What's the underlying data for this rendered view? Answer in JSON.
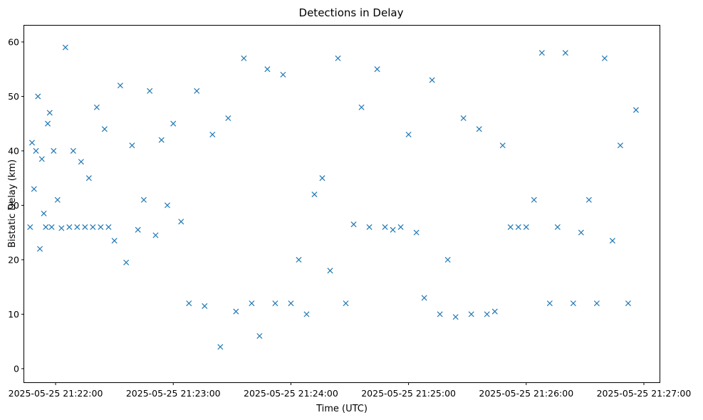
{
  "chart_data": {
    "type": "scatter",
    "title": "Detections in Delay",
    "xlabel": "Time (UTC)",
    "ylabel": "Bistatic Delay (km)",
    "marker": "x",
    "color": "#1f77b4",
    "grid": false,
    "x_tick_labels": [
      "2025-05-25 21:22:00",
      "2025-05-25 21:23:00",
      "2025-05-25 21:24:00",
      "2025-05-25 21:25:00",
      "2025-05-25 21:26:00",
      "2025-05-25 21:27:00"
    ],
    "y_ticks": [
      0,
      10,
      20,
      30,
      40,
      50,
      60
    ],
    "xlim": [
      "2025-05-25 21:21:44",
      "2025-05-25 21:27:08"
    ],
    "ylim": [
      -2.5,
      63
    ],
    "points_time": [
      "21:21:47",
      "21:21:47",
      "21:21:48",
      "21:21:48",
      "21:21:49",
      "21:21:49",
      "21:21:50",
      "21:21:50",
      "21:21:51",
      "21:21:51",
      "21:21:52",
      "21:21:52",
      "21:21:53",
      "21:21:54",
      "21:21:54",
      "21:21:55",
      "21:21:55",
      "21:21:56",
      "21:21:56",
      "21:21:57",
      "21:21:58",
      "21:21:58",
      "21:21:59",
      "21:21:59",
      "21:22:00",
      "21:22:00",
      "21:22:01",
      "21:22:02",
      "21:22:03",
      "21:22:04",
      "21:22:05",
      "21:22:06",
      "21:22:07",
      "21:22:08",
      "21:22:09",
      "21:22:10",
      "21:22:11",
      "21:22:12",
      "21:22:13",
      "21:22:14",
      "21:22:15",
      "21:22:16",
      "21:22:17",
      "21:22:18",
      "21:22:19",
      "21:22:20",
      "21:22:21",
      "21:22:22",
      "21:22:23",
      "21:22:24",
      "21:22:25",
      "21:22:26",
      "21:22:27",
      "21:22:28",
      "21:22:29",
      "21:22:30",
      "21:22:31",
      "21:22:32",
      "21:22:33",
      "21:22:34",
      "21:22:35",
      "21:22:36",
      "21:22:37",
      "21:22:38",
      "21:22:39",
      "21:22:40",
      "21:22:41",
      "21:22:42",
      "21:22:43",
      "21:22:44",
      "21:22:45",
      "21:22:46",
      "21:22:47",
      "21:22:48",
      "21:22:49",
      "21:22:50",
      "21:22:51",
      "21:22:52",
      "21:22:53",
      "21:22:54",
      "21:22:55",
      "21:22:56",
      "21:22:57",
      "21:22:58",
      "21:22:59",
      "21:23:00",
      "21:23:01",
      "21:23:02",
      "21:23:03",
      "21:23:04",
      "21:23:05",
      "21:23:06",
      "21:23:07",
      "21:23:08",
      "21:23:09",
      "21:23:10",
      "21:23:11",
      "21:23:12",
      "21:23:13",
      "21:23:14",
      "21:23:15",
      "21:23:16",
      "21:23:17",
      "21:23:18",
      "21:23:19",
      "21:23:20",
      "21:23:21",
      "21:23:22",
      "21:23:23",
      "21:23:24",
      "21:23:25",
      "21:23:26",
      "21:23:27",
      "21:23:28",
      "21:23:29",
      "21:23:30",
      "21:23:31",
      "21:23:32",
      "21:23:33",
      "21:23:34",
      "21:23:35",
      "21:23:36",
      "21:23:37",
      "21:23:38",
      "21:23:39",
      "21:23:40",
      "21:23:41",
      "21:23:42",
      "21:23:43",
      "21:23:44",
      "21:23:45",
      "21:23:46",
      "21:23:47",
      "21:23:48",
      "21:23:49",
      "21:23:50",
      "21:23:51",
      "21:23:52",
      "21:23:53",
      "21:23:54",
      "21:23:55",
      "21:23:56",
      "21:23:57",
      "21:23:58",
      "21:23:59",
      "21:24:00",
      "21:24:01",
      "21:24:02",
      "21:24:03",
      "21:24:04",
      "21:24:05",
      "21:24:06",
      "21:24:07",
      "21:24:08",
      "21:24:09",
      "21:24:10",
      "21:24:11",
      "21:24:12",
      "21:24:13",
      "21:24:14",
      "21:24:15",
      "21:24:16",
      "21:24:17",
      "21:24:18",
      "21:24:19",
      "21:24:20",
      "21:24:21",
      "21:24:22",
      "21:24:23",
      "21:24:24",
      "21:24:25",
      "21:24:26",
      "21:24:27",
      "21:24:28",
      "21:24:29",
      "21:24:30",
      "21:24:31",
      "21:24:32",
      "21:24:33",
      "21:24:34",
      "21:24:35",
      "21:24:36",
      "21:24:37",
      "21:24:38",
      "21:24:39",
      "21:24:40",
      "21:24:41",
      "21:24:42",
      "21:24:43",
      "21:24:44",
      "21:24:45",
      "21:24:46",
      "21:24:47",
      "21:24:48",
      "21:24:49",
      "21:24:50",
      "21:24:51",
      "21:24:52",
      "21:24:53",
      "21:24:54",
      "21:24:55",
      "21:24:56",
      "21:24:57",
      "21:24:58",
      "21:24:59",
      "21:25:00",
      "21:25:01",
      "21:25:02",
      "21:25:03",
      "21:25:04",
      "21:25:05",
      "21:25:06",
      "21:25:07",
      "21:25:08",
      "21:25:09",
      "21:25:10",
      "21:25:11",
      "21:25:12",
      "21:25:13",
      "21:25:14",
      "21:25:15",
      "21:25:16",
      "21:25:17",
      "21:25:18",
      "21:25:19",
      "21:25:20",
      "21:25:21",
      "21:25:22",
      "21:25:23",
      "21:25:24",
      "21:25:25",
      "21:25:26",
      "21:25:27",
      "21:25:28",
      "21:25:29",
      "21:25:30",
      "21:25:31",
      "21:25:32",
      "21:25:33",
      "21:25:34",
      "21:25:35",
      "21:25:36",
      "21:25:37",
      "21:25:38",
      "21:25:39",
      "21:25:40",
      "21:25:41",
      "21:25:42",
      "21:25:43",
      "21:25:44",
      "21:25:45",
      "21:25:46",
      "21:25:47",
      "21:25:48",
      "21:25:49",
      "21:25:50",
      "21:25:51",
      "21:25:52",
      "21:25:53",
      "21:25:54",
      "21:25:55",
      "21:25:56",
      "21:25:57",
      "21:25:58",
      "21:25:59",
      "21:26:00",
      "21:26:01",
      "21:26:02",
      "21:26:03",
      "21:26:04",
      "21:26:05",
      "21:26:06",
      "21:26:07",
      "21:26:08",
      "21:26:09",
      "21:26:10",
      "21:26:11",
      "21:26:12",
      "21:26:13",
      "21:26:14",
      "21:26:15",
      "21:26:16",
      "21:26:17",
      "21:26:18",
      "21:26:19",
      "21:26:20",
      "21:26:21",
      "21:26:22",
      "21:26:23",
      "21:26:24",
      "21:26:25",
      "21:26:26",
      "21:26:27",
      "21:26:28",
      "21:26:29",
      "21:26:30",
      "21:26:31",
      "21:26:32",
      "21:26:33",
      "21:26:34",
      "21:26:35",
      "21:26:36",
      "21:26:37",
      "21:26:38",
      "21:26:39",
      "21:26:40",
      "21:26:41",
      "21:26:42",
      "21:26:43",
      "21:26:44",
      "21:26:45",
      "21:26:46",
      "21:26:47",
      "21:26:48",
      "21:26:49",
      "21:26:50",
      "21:26:51",
      "21:26:52",
      "21:26:53",
      "21:26:54",
      "21:26:55",
      "21:26:56",
      "21:26:57"
    ],
    "series": [
      {
        "x": [
          "21:21:47",
          "21:21:48",
          "21:21:49",
          "21:21:50",
          "21:21:51",
          "21:21:52",
          "21:21:53",
          "21:21:54",
          "21:21:55",
          "21:21:56",
          "21:21:57",
          "21:21:58",
          "21:21:59",
          "21:22:01",
          "21:22:03",
          "21:22:05",
          "21:22:07",
          "21:22:09",
          "21:22:11",
          "21:22:13",
          "21:22:15",
          "21:22:17",
          "21:22:19",
          "21:22:21",
          "21:22:23",
          "21:22:25",
          "21:22:27",
          "21:22:30",
          "21:22:33",
          "21:22:36",
          "21:22:39",
          "21:22:42",
          "21:22:45",
          "21:22:48",
          "21:22:51",
          "21:22:54",
          "21:22:57",
          "21:23:00",
          "21:23:04",
          "21:23:08",
          "21:23:12",
          "21:23:16",
          "21:23:20",
          "21:23:24",
          "21:23:28",
          "21:23:32",
          "21:23:36",
          "21:23:40",
          "21:23:44",
          "21:23:48",
          "21:23:52",
          "21:23:56",
          "21:24:00",
          "21:24:04",
          "21:24:08",
          "21:24:12",
          "21:24:16",
          "21:24:20",
          "21:24:24",
          "21:24:28",
          "21:24:32",
          "21:24:36",
          "21:24:40",
          "21:24:44",
          "21:24:48",
          "21:24:52",
          "21:24:56",
          "21:25:00",
          "21:25:04",
          "21:25:08",
          "21:25:12",
          "21:25:16",
          "21:25:20",
          "21:25:24",
          "21:25:28",
          "21:25:32",
          "21:25:36",
          "21:25:40",
          "21:25:44",
          "21:25:48",
          "21:25:52",
          "21:25:56",
          "21:26:00",
          "21:26:04",
          "21:26:08",
          "21:26:12",
          "21:26:16",
          "21:26:20",
          "21:26:24",
          "21:26:28",
          "21:26:32",
          "21:26:36",
          "21:26:40",
          "21:26:44",
          "21:26:48",
          "21:26:52",
          "21:26:56"
        ],
        "y": [
          26,
          41.5,
          33,
          40,
          50,
          22,
          38.5,
          28.5,
          26,
          45,
          47,
          26,
          40,
          31,
          25.8,
          59,
          26,
          40,
          26,
          38,
          26,
          35,
          26,
          48,
          26,
          44,
          26,
          23.5,
          52,
          19.5,
          41,
          25.5,
          31,
          51,
          24.5,
          42,
          30,
          45,
          27,
          12,
          51,
          11.5,
          43,
          4,
          46,
          10.5,
          57,
          12,
          6,
          55,
          12,
          54,
          12,
          20,
          10,
          32,
          35,
          18,
          57,
          12,
          26.5,
          48,
          26,
          55,
          26,
          25.5,
          26,
          43,
          25,
          13,
          53,
          10,
          20,
          9.5,
          46,
          10,
          44,
          10,
          10.5,
          41,
          26,
          26,
          26,
          31,
          58,
          12,
          26,
          58,
          12,
          25,
          31,
          12,
          57,
          23.5,
          41,
          12,
          47.5
        ]
      }
    ]
  }
}
